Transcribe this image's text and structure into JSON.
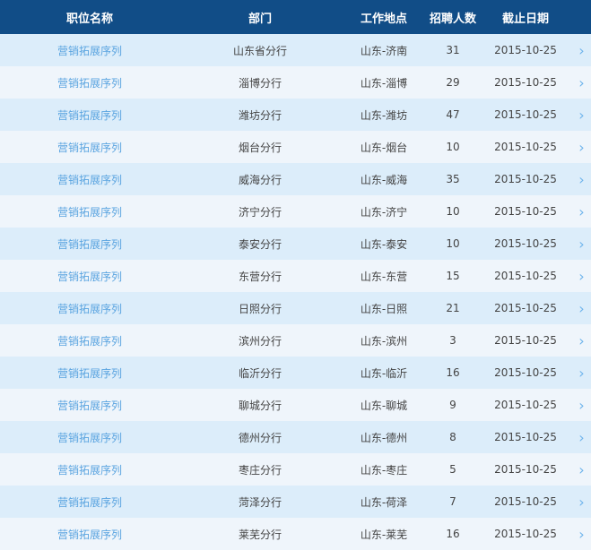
{
  "header": {
    "job": "职位名称",
    "dept": "部门",
    "location": "工作地点",
    "count": "招聘人数",
    "deadline": "截止日期"
  },
  "colors": {
    "header_bg": "#114d87",
    "row_odd": "#dcedfa",
    "row_even": "#eff5fb",
    "link": "#5aa4e0"
  },
  "rows": [
    {
      "job": "营销拓展序列",
      "dept": "山东省分行",
      "location": "山东-济南",
      "count": "31",
      "deadline": "2015-10-25"
    },
    {
      "job": "营销拓展序列",
      "dept": "淄博分行",
      "location": "山东-淄博",
      "count": "29",
      "deadline": "2015-10-25"
    },
    {
      "job": "营销拓展序列",
      "dept": "潍坊分行",
      "location": "山东-潍坊",
      "count": "47",
      "deadline": "2015-10-25"
    },
    {
      "job": "营销拓展序列",
      "dept": "烟台分行",
      "location": "山东-烟台",
      "count": "10",
      "deadline": "2015-10-25"
    },
    {
      "job": "营销拓展序列",
      "dept": "威海分行",
      "location": "山东-威海",
      "count": "35",
      "deadline": "2015-10-25"
    },
    {
      "job": "营销拓展序列",
      "dept": "济宁分行",
      "location": "山东-济宁",
      "count": "10",
      "deadline": "2015-10-25"
    },
    {
      "job": "营销拓展序列",
      "dept": "泰安分行",
      "location": "山东-泰安",
      "count": "10",
      "deadline": "2015-10-25"
    },
    {
      "job": "营销拓展序列",
      "dept": "东营分行",
      "location": "山东-东营",
      "count": "15",
      "deadline": "2015-10-25"
    },
    {
      "job": "营销拓展序列",
      "dept": "日照分行",
      "location": "山东-日照",
      "count": "21",
      "deadline": "2015-10-25"
    },
    {
      "job": "营销拓展序列",
      "dept": "滨州分行",
      "location": "山东-滨州",
      "count": "3",
      "deadline": "2015-10-25"
    },
    {
      "job": "营销拓展序列",
      "dept": "临沂分行",
      "location": "山东-临沂",
      "count": "16",
      "deadline": "2015-10-25"
    },
    {
      "job": "营销拓展序列",
      "dept": "聊城分行",
      "location": "山东-聊城",
      "count": "9",
      "deadline": "2015-10-25"
    },
    {
      "job": "营销拓展序列",
      "dept": "德州分行",
      "location": "山东-德州",
      "count": "8",
      "deadline": "2015-10-25"
    },
    {
      "job": "营销拓展序列",
      "dept": "枣庄分行",
      "location": "山东-枣庄",
      "count": "5",
      "deadline": "2015-10-25"
    },
    {
      "job": "营销拓展序列",
      "dept": "菏泽分行",
      "location": "山东-荷泽",
      "count": "7",
      "deadline": "2015-10-25"
    },
    {
      "job": "营销拓展序列",
      "dept": "莱芜分行",
      "location": "山东-莱芜",
      "count": "16",
      "deadline": "2015-10-25"
    }
  ]
}
